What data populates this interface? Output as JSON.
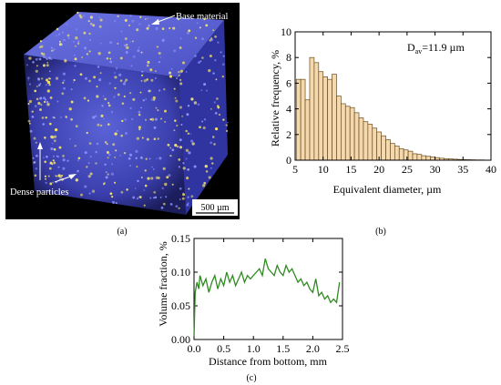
{
  "panels": {
    "a": {
      "label": "(a)",
      "annotations": {
        "base_material": "Base material",
        "dense_particles": "Dense particles"
      },
      "scale_bar_label": "500 µm"
    },
    "b": {
      "label": "(b)"
    },
    "c": {
      "label": "(c)"
    }
  },
  "chart_data": [
    {
      "type": "bar",
      "panel": "b",
      "annotation": {
        "prefix": "D",
        "subscript": "av",
        "text": "=11.9 µm"
      },
      "xlabel": "Equivalent diameter, µm",
      "ylabel": "Relative frequency, %",
      "xlim": [
        5,
        40
      ],
      "ylim": [
        0,
        10
      ],
      "xticks": [
        5,
        10,
        15,
        20,
        25,
        30,
        35,
        40
      ],
      "yticks": [
        0,
        2,
        4,
        6,
        8,
        10
      ],
      "bin_width": 0.8,
      "bar_fill": "#f5d9ae",
      "bar_stroke": "#6b4a1e",
      "bins": [
        [
          5.2,
          6.3
        ],
        [
          6.0,
          6.3
        ],
        [
          6.8,
          4.7
        ],
        [
          7.6,
          8.0
        ],
        [
          8.4,
          7.6
        ],
        [
          9.2,
          6.9
        ],
        [
          10.0,
          6.5
        ],
        [
          10.8,
          6.3
        ],
        [
          11.6,
          6.7
        ],
        [
          12.4,
          5.0
        ],
        [
          13.2,
          4.4
        ],
        [
          14.0,
          4.2
        ],
        [
          14.8,
          4.1
        ],
        [
          15.6,
          3.7
        ],
        [
          16.4,
          3.3
        ],
        [
          17.2,
          3.0
        ],
        [
          18.0,
          2.8
        ],
        [
          18.8,
          2.5
        ],
        [
          19.6,
          2.2
        ],
        [
          20.4,
          1.9
        ],
        [
          21.2,
          1.6
        ],
        [
          22.0,
          1.3
        ],
        [
          22.8,
          1.1
        ],
        [
          23.6,
          0.9
        ],
        [
          24.4,
          0.8
        ],
        [
          25.2,
          0.7
        ],
        [
          26.0,
          0.5
        ],
        [
          26.8,
          0.45
        ],
        [
          27.6,
          0.35
        ],
        [
          28.4,
          0.3
        ],
        [
          29.2,
          0.25
        ],
        [
          30.0,
          0.2
        ],
        [
          30.8,
          0.15
        ],
        [
          31.6,
          0.12
        ],
        [
          32.4,
          0.1
        ],
        [
          33.2,
          0.08
        ],
        [
          34.0,
          0.06
        ],
        [
          34.8,
          0.05
        ],
        [
          35.6,
          0.04
        ],
        [
          36.4,
          0.03
        ],
        [
          37.2,
          0.02
        ],
        [
          38.0,
          0.02
        ],
        [
          38.8,
          0.01
        ]
      ]
    },
    {
      "type": "line",
      "panel": "c",
      "xlabel": "Distance from bottom, mm",
      "ylabel": "Volume fraction, %",
      "xlim": [
        0,
        2.5
      ],
      "ylim": [
        0,
        0.15
      ],
      "xticks": [
        0.0,
        0.5,
        1.0,
        1.5,
        2.0,
        2.5
      ],
      "yticks": [
        0.0,
        0.05,
        0.1,
        0.15
      ],
      "line_color": "#2e8b1f",
      "x": [
        0.0,
        0.02,
        0.05,
        0.08,
        0.1,
        0.15,
        0.2,
        0.25,
        0.3,
        0.35,
        0.4,
        0.45,
        0.5,
        0.55,
        0.6,
        0.65,
        0.7,
        0.75,
        0.8,
        0.85,
        0.9,
        0.95,
        1.0,
        1.05,
        1.1,
        1.15,
        1.2,
        1.25,
        1.3,
        1.35,
        1.4,
        1.45,
        1.5,
        1.55,
        1.6,
        1.65,
        1.7,
        1.75,
        1.8,
        1.85,
        1.9,
        1.95,
        2.0,
        2.05,
        2.1,
        2.15,
        2.2,
        2.25,
        2.3,
        2.35,
        2.4,
        2.45
      ],
      "y": [
        0.005,
        0.07,
        0.085,
        0.075,
        0.095,
        0.08,
        0.09,
        0.07,
        0.085,
        0.095,
        0.075,
        0.09,
        0.08,
        0.1,
        0.085,
        0.095,
        0.08,
        0.09,
        0.1,
        0.085,
        0.095,
        0.09,
        0.095,
        0.1,
        0.105,
        0.095,
        0.12,
        0.105,
        0.1,
        0.095,
        0.11,
        0.1,
        0.095,
        0.11,
        0.1,
        0.105,
        0.095,
        0.085,
        0.09,
        0.08,
        0.085,
        0.075,
        0.07,
        0.09,
        0.065,
        0.07,
        0.06,
        0.065,
        0.055,
        0.06,
        0.055,
        0.085
      ]
    }
  ]
}
